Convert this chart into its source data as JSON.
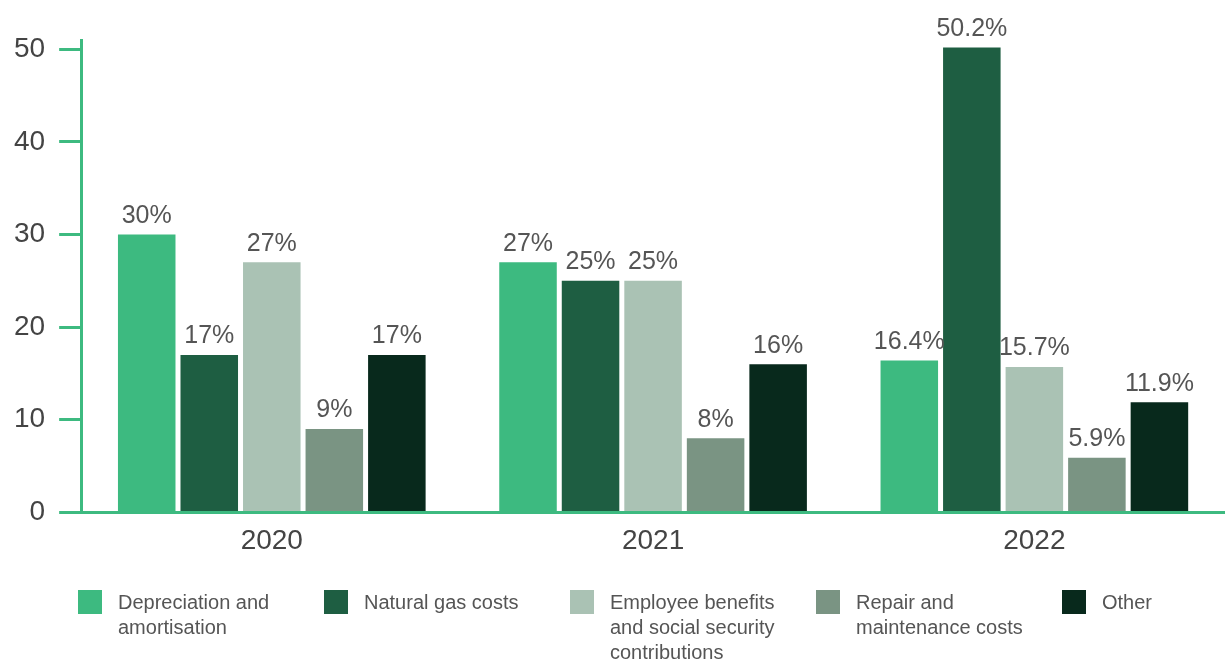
{
  "chart_data": {
    "type": "bar",
    "categories": [
      "2020",
      "2021",
      "2022"
    ],
    "ylim": [
      0,
      51
    ],
    "yticks": [
      0,
      10,
      20,
      30,
      40,
      50
    ],
    "grid": false,
    "legend": "bottom",
    "series": [
      {
        "name": "Depreciation and amortisation",
        "color": "#3dba80",
        "values": [
          30,
          27,
          16.4
        ],
        "value_labels": [
          "30%",
          "27%",
          "16.4%"
        ]
      },
      {
        "name": "Natural gas costs",
        "color": "#1e5e42",
        "values": [
          17,
          25,
          50.2
        ],
        "value_labels": [
          "17%",
          "25%",
          "50.2%"
        ]
      },
      {
        "name": "Employee benefits and social security contributions",
        "color": "#aac2b4",
        "values": [
          27,
          25,
          15.7
        ],
        "value_labels": [
          "27%",
          "25%",
          "15.7%"
        ]
      },
      {
        "name": "Repair and maintenance costs",
        "color": "#7a9483",
        "values": [
          9,
          8,
          5.9
        ],
        "value_labels": [
          "9%",
          "8%",
          "5.9%"
        ]
      },
      {
        "name": "Other",
        "color": "#08291c",
        "values": [
          17,
          16,
          11.9
        ],
        "value_labels": [
          "17%",
          "16%",
          "11.9%"
        ]
      }
    ]
  }
}
